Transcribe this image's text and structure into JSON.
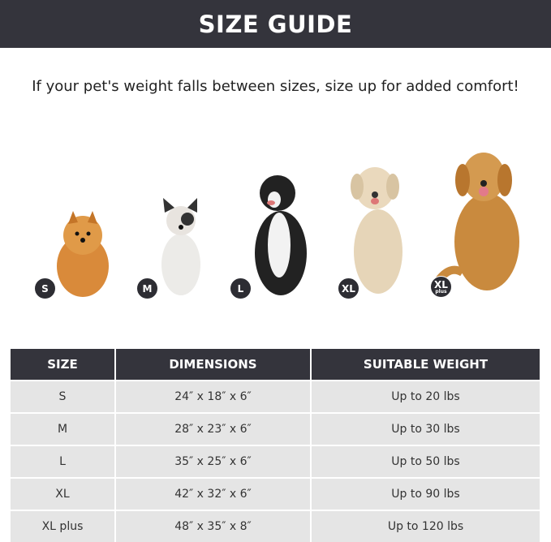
{
  "title": "SIZE GUIDE",
  "subtitle": "If your pet's weight falls between sizes, size up for added comfort!",
  "dogs": [
    {
      "badge": "S",
      "color": "#d98a3a"
    },
    {
      "badge": "M",
      "color": "#e8e4df"
    },
    {
      "badge": "L",
      "color": "#222222"
    },
    {
      "badge": "XL",
      "color": "#e6d5b8"
    },
    {
      "badge": "XL",
      "badge_sub": "plus",
      "color": "#c98a3e"
    }
  ],
  "table": {
    "headers": [
      "SIZE",
      "DIMENSIONS",
      "SUITABLE WEIGHT"
    ],
    "rows": [
      [
        "S",
        "24″ x 18″ x 6″",
        "Up to 20 lbs"
      ],
      [
        "M",
        "28″ x 23″ x 6″",
        "Up to 30 lbs"
      ],
      [
        "L",
        "35″ x 25″ x 6″",
        "Up to 50 lbs"
      ],
      [
        "XL",
        "42″ x 32″ x 6″",
        "Up to 90 lbs"
      ],
      [
        "XL plus",
        "48″ x 35″ x 8″",
        "Up to 120 lbs"
      ]
    ]
  }
}
